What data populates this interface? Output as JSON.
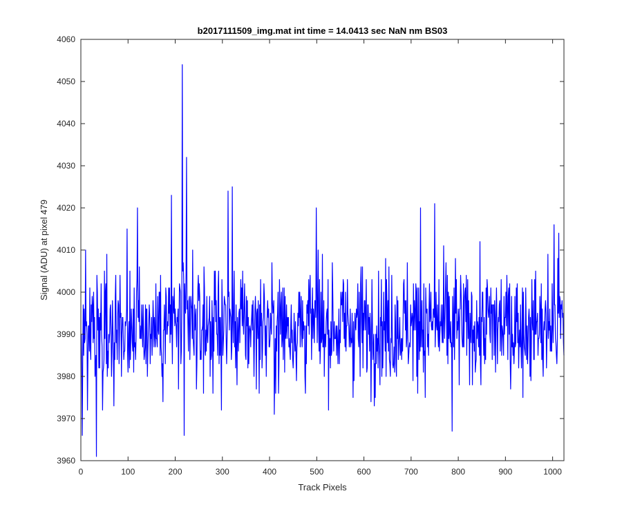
{
  "chart_data": {
    "type": "line",
    "title": "b2017111509_img.mat int time = 14.0413 sec  NaN nm BS03",
    "xlabel": "Track Pixels",
    "ylabel": "Signal (ADU) at pixel 479",
    "xlim": [
      0,
      1024
    ],
    "ylim": [
      3960,
      4060
    ],
    "xticks": [
      0,
      100,
      200,
      300,
      400,
      500,
      600,
      700,
      800,
      900,
      1000
    ],
    "yticks": [
      3960,
      3970,
      3980,
      3990,
      4000,
      4010,
      4020,
      4030,
      4040,
      4050,
      4060
    ],
    "grid": false,
    "box": true,
    "series": [
      {
        "color": "#0000ff",
        "x_start": 1,
        "x_step": 1,
        "points_count": 1024,
        "mean": 3992,
        "std": 7,
        "notable_points": [
          {
            "x": 1,
            "y": 3990
          },
          {
            "x": 3,
            "y": 3966
          },
          {
            "x": 10,
            "y": 4010
          },
          {
            "x": 33,
            "y": 3961
          },
          {
            "x": 55,
            "y": 4009
          },
          {
            "x": 98,
            "y": 4015
          },
          {
            "x": 120,
            "y": 4020
          },
          {
            "x": 192,
            "y": 4023
          },
          {
            "x": 215,
            "y": 4054
          },
          {
            "x": 219,
            "y": 3966
          },
          {
            "x": 224,
            "y": 4032
          },
          {
            "x": 312,
            "y": 4024
          },
          {
            "x": 321,
            "y": 4025
          },
          {
            "x": 410,
            "y": 3971
          },
          {
            "x": 499,
            "y": 4020
          },
          {
            "x": 720,
            "y": 4020
          },
          {
            "x": 750,
            "y": 4021
          },
          {
            "x": 787,
            "y": 3967
          },
          {
            "x": 1003,
            "y": 4016
          },
          {
            "x": 1013,
            "y": 4014
          },
          {
            "x": 1024,
            "y": 3985
          }
        ]
      }
    ]
  }
}
